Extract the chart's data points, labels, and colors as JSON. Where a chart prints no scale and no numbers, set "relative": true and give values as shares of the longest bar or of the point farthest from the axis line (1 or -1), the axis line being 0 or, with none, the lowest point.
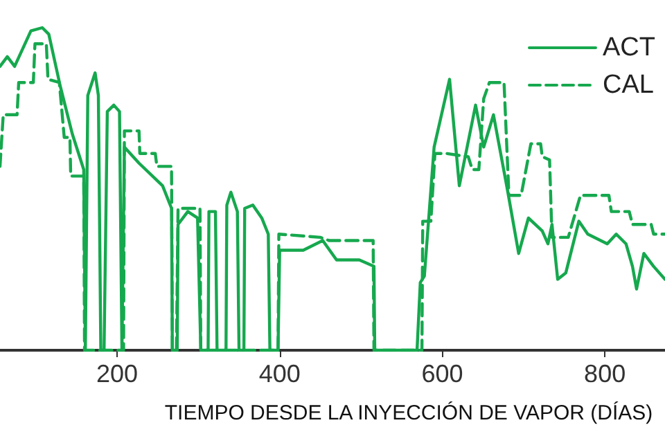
{
  "chart_data": {
    "type": "line",
    "xlabel": "TIEMPO DESDE LA INYECCIÓN DE VAPOR (DÍAS)",
    "relative": true,
    "xlim": [
      56,
      874
    ],
    "xticks": [
      200,
      400,
      600,
      800
    ],
    "legend": "top right",
    "marker": "none",
    "grid": false,
    "series": [
      {
        "name": "ACT",
        "color": "#16a84e",
        "line_style": "solid",
        "x": [
          56,
          65,
          74,
          94,
          108,
          116,
          130,
          145,
          159,
          161,
          164,
          173,
          177,
          180,
          184,
          188,
          196,
          203,
          206,
          207,
          209,
          227,
          256,
          267,
          268,
          274,
          275,
          287,
          299,
          303,
          312,
          313,
          321,
          323,
          334,
          335,
          340,
          348,
          350,
          356,
          357,
          367,
          378,
          386,
          388,
          398,
          400,
          429,
          453,
          470,
          498,
          516,
          517,
          569,
          573,
          578,
          590,
          609,
          621,
          641,
          651,
          663,
          680,
          694,
          706,
          723,
          730,
          735,
          742,
          752,
          768,
          779,
          803,
          814,
          826,
          834,
          839,
          848,
          860,
          874
        ],
        "values": [
          0.88,
          0.91,
          0.88,
          0.99,
          1,
          0.98,
          0.82,
          0.67,
          0.56,
          0,
          0.79,
          0.86,
          0.79,
          0,
          0,
          0.74,
          0.76,
          0.74,
          0,
          0,
          0.63,
          0.58,
          0.51,
          0.44,
          0,
          0,
          0.39,
          0.43,
          0.41,
          0,
          0,
          0.43,
          0.43,
          0,
          0,
          0.45,
          0.49,
          0.43,
          0,
          0,
          0.44,
          0.45,
          0.41,
          0.36,
          0,
          0,
          0.31,
          0.31,
          0.34,
          0.28,
          0.28,
          0.26,
          0,
          0,
          0.21,
          0.23,
          0.63,
          0.84,
          0.51,
          0.76,
          0.63,
          0.73,
          0.5,
          0.3,
          0.41,
          0.37,
          0.33,
          0.39,
          0.22,
          0.24,
          0.4,
          0.36,
          0.33,
          0.36,
          0.33,
          0.26,
          0.19,
          0.3,
          0.26,
          0.22
        ]
      },
      {
        "name": "CAL",
        "color": "#16a84e",
        "line_style": "dashed",
        "x": [
          56,
          60,
          77,
          79,
          97,
          99,
          113,
          115,
          129,
          135,
          142,
          143,
          159,
          160,
          208,
          209,
          227,
          228,
          247,
          249,
          267,
          268,
          273,
          275,
          302,
          303,
          398,
          399,
          450,
          461,
          515,
          516,
          575,
          576,
          586,
          591,
          605,
          632,
          637,
          645,
          651,
          658,
          676,
          682,
          697,
          703,
          709,
          721,
          723,
          732,
          735,
          755,
          770,
          805,
          808,
          830,
          834,
          857,
          860,
          874
        ],
        "values": [
          0.57,
          0.73,
          0.73,
          0.83,
          0.83,
          0.95,
          0.95,
          0.84,
          0.83,
          0.66,
          0.66,
          0.54,
          0.54,
          0,
          0,
          0.68,
          0.68,
          0.61,
          0.61,
          0.57,
          0.57,
          0,
          0,
          0.44,
          0.44,
          0,
          0,
          0.36,
          0.35,
          0.34,
          0.34,
          0,
          0,
          0.4,
          0.4,
          0.61,
          0.61,
          0.6,
          0.56,
          0.56,
          0.78,
          0.83,
          0.83,
          0.48,
          0.48,
          0.56,
          0.64,
          0.64,
          0.6,
          0.59,
          0.35,
          0.35,
          0.48,
          0.48,
          0.43,
          0.43,
          0.39,
          0.39,
          0.36,
          0.36
        ]
      }
    ]
  }
}
